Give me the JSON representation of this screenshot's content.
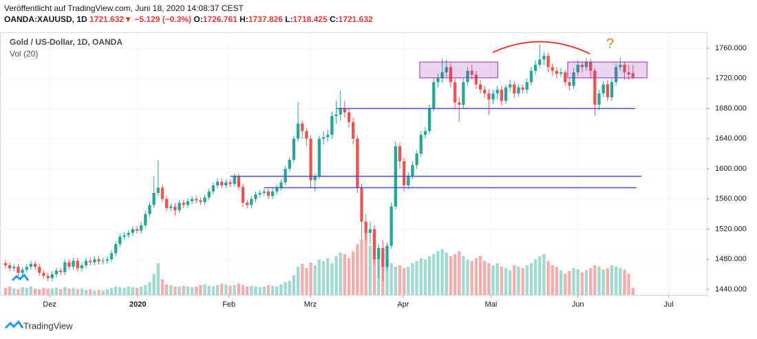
{
  "chart_data": {
    "type": "candlestick",
    "header": {
      "published": "Veröffentlicht auf TradingView.com, Juni 18, 2020 14:08:37 CEST",
      "symbol": "OANDA:XAUUSD, 1D",
      "last": "1721.632",
      "arrow": "▼",
      "change": "−5.129 (−0.3%)",
      "o_label": "O:",
      "o": "1726.761",
      "h_label": "H:",
      "h": "1737.826",
      "l_label": "L:",
      "l": "1718.425",
      "c_label": "C:",
      "c": "1721.632"
    },
    "title": "Gold  / US-Dollar, 1D, OANDA",
    "volume_label": "Vol (20)",
    "footer": "TradingView",
    "up_color": "#26a69a",
    "down_color": "#ef5350",
    "volume_up_color": "#9fd9d1",
    "volume_down_color": "#f7adab",
    "open": [
      1475,
      1472,
      1468,
      1470,
      1462,
      1466,
      1470,
      1474,
      1470,
      1462,
      1458,
      1455,
      1460,
      1465,
      1463,
      1476,
      1470,
      1478,
      1468,
      1472,
      1478,
      1476,
      1480,
      1477,
      1478,
      1480,
      1488,
      1500,
      1510,
      1512,
      1515,
      1520,
      1518,
      1525,
      1540,
      1552,
      1568,
      1575,
      1560,
      1548,
      1550,
      1545,
      1555,
      1552,
      1557,
      1560,
      1558,
      1556,
      1562,
      1570,
      1578,
      1583,
      1578,
      1582,
      1580,
      1590,
      1576,
      1555,
      1552,
      1560,
      1566,
      1568,
      1570,
      1564,
      1570,
      1575,
      1582,
      1600,
      1612,
      1640,
      1660,
      1650,
      1640,
      1585,
      1590,
      1640,
      1642,
      1645,
      1670,
      1672,
      1680,
      1675,
      1662,
      1640,
      1575,
      1530,
      1515,
      1520,
      1480,
      1495,
      1470,
      1498,
      1550,
      1630,
      1610,
      1578,
      1590,
      1605,
      1620,
      1645,
      1650,
      1680,
      1715,
      1720,
      1728,
      1735,
      1715,
      1688,
      1685,
      1715,
      1730,
      1725,
      1712,
      1705,
      1700,
      1692,
      1700,
      1705,
      1690,
      1708,
      1712,
      1700,
      1708,
      1705,
      1715,
      1730,
      1738,
      1745,
      1750,
      1735,
      1730,
      1726,
      1728,
      1715,
      1710,
      1728,
      1738,
      1735,
      1742,
      1730,
      1685,
      1700,
      1712,
      1695,
      1715,
      1735,
      1738,
      1728,
      1726.761
    ],
    "high": [
      1479,
      1476,
      1474,
      1474,
      1470,
      1474,
      1478,
      1478,
      1474,
      1466,
      1462,
      1464,
      1469,
      1469,
      1480,
      1480,
      1482,
      1482,
      1476,
      1482,
      1482,
      1484,
      1484,
      1482,
      1484,
      1492,
      1504,
      1514,
      1516,
      1519,
      1524,
      1524,
      1529,
      1544,
      1556,
      1590,
      1611,
      1579,
      1564,
      1554,
      1554,
      1559,
      1559,
      1561,
      1564,
      1564,
      1562,
      1566,
      1574,
      1582,
      1587,
      1587,
      1586,
      1586,
      1594,
      1594,
      1580,
      1559,
      1564,
      1570,
      1572,
      1574,
      1574,
      1574,
      1579,
      1586,
      1604,
      1616,
      1644,
      1689,
      1664,
      1654,
      1644,
      1594,
      1644,
      1650,
      1652,
      1676,
      1690,
      1704,
      1690,
      1680,
      1668,
      1645,
      1580,
      1540,
      1530,
      1525,
      1500,
      1505,
      1502,
      1555,
      1636,
      1635,
      1615,
      1595,
      1610,
      1624,
      1650,
      1655,
      1685,
      1720,
      1726,
      1746,
      1745,
      1740,
      1720,
      1695,
      1720,
      1735,
      1738,
      1730,
      1718,
      1710,
      1706,
      1705,
      1710,
      1710,
      1712,
      1718,
      1716,
      1712,
      1712,
      1720,
      1735,
      1744,
      1765,
      1755,
      1754,
      1740,
      1735,
      1734,
      1732,
      1720,
      1733,
      1744,
      1742,
      1747,
      1746,
      1734,
      1705,
      1716,
      1718,
      1720,
      1740,
      1748,
      1742,
      1738,
      1737.826
    ],
    "low": [
      1468,
      1464,
      1464,
      1458,
      1458,
      1462,
      1466,
      1466,
      1458,
      1454,
      1451,
      1451,
      1456,
      1459,
      1459,
      1466,
      1466,
      1464,
      1464,
      1468,
      1472,
      1472,
      1473,
      1473,
      1474,
      1476,
      1484,
      1496,
      1506,
      1508,
      1511,
      1514,
      1514,
      1521,
      1536,
      1548,
      1564,
      1556,
      1544,
      1544,
      1538,
      1541,
      1548,
      1548,
      1553,
      1554,
      1552,
      1552,
      1558,
      1566,
      1574,
      1574,
      1574,
      1576,
      1576,
      1572,
      1549,
      1548,
      1548,
      1556,
      1562,
      1564,
      1560,
      1560,
      1566,
      1571,
      1578,
      1596,
      1608,
      1636,
      1640,
      1630,
      1575,
      1570,
      1586,
      1632,
      1636,
      1640,
      1660,
      1664,
      1668,
      1655,
      1632,
      1568,
      1505,
      1505,
      1500,
      1472,
      1455,
      1451,
      1465,
      1494,
      1546,
      1600,
      1570,
      1573,
      1586,
      1600,
      1616,
      1640,
      1646,
      1676,
      1708,
      1714,
      1722,
      1708,
      1680,
      1662,
      1680,
      1710,
      1718,
      1706,
      1700,
      1694,
      1672,
      1686,
      1692,
      1684,
      1686,
      1702,
      1694,
      1696,
      1700,
      1700,
      1710,
      1725,
      1734,
      1738,
      1728,
      1724,
      1720,
      1722,
      1710,
      1704,
      1706,
      1724,
      1728,
      1730,
      1720,
      1670,
      1678,
      1695,
      1690,
      1690,
      1710,
      1730,
      1718,
      1718,
      1718.425
    ],
    "close": [
      1472,
      1468,
      1470,
      1462,
      1466,
      1470,
      1474,
      1470,
      1462,
      1458,
      1455,
      1460,
      1465,
      1463,
      1476,
      1470,
      1478,
      1468,
      1472,
      1478,
      1476,
      1480,
      1477,
      1478,
      1480,
      1488,
      1500,
      1510,
      1512,
      1515,
      1520,
      1518,
      1525,
      1540,
      1552,
      1568,
      1575,
      1560,
      1548,
      1550,
      1545,
      1555,
      1552,
      1557,
      1560,
      1558,
      1556,
      1562,
      1570,
      1578,
      1583,
      1578,
      1582,
      1580,
      1590,
      1576,
      1555,
      1552,
      1560,
      1566,
      1568,
      1570,
      1564,
      1570,
      1575,
      1582,
      1600,
      1612,
      1640,
      1660,
      1650,
      1640,
      1585,
      1590,
      1640,
      1642,
      1645,
      1670,
      1672,
      1680,
      1675,
      1662,
      1640,
      1575,
      1530,
      1515,
      1520,
      1480,
      1495,
      1470,
      1498,
      1550,
      1630,
      1610,
      1578,
      1590,
      1605,
      1620,
      1645,
      1650,
      1680,
      1715,
      1720,
      1728,
      1735,
      1715,
      1688,
      1685,
      1715,
      1730,
      1725,
      1712,
      1705,
      1700,
      1692,
      1700,
      1705,
      1690,
      1708,
      1712,
      1700,
      1708,
      1705,
      1715,
      1730,
      1738,
      1745,
      1750,
      1735,
      1730,
      1726,
      1728,
      1715,
      1710,
      1728,
      1738,
      1735,
      1742,
      1730,
      1685,
      1700,
      1712,
      1695,
      1715,
      1735,
      1738,
      1728,
      1725,
      1721.632
    ],
    "volume": [
      10,
      12,
      9,
      8,
      11,
      10,
      12,
      9,
      8,
      10,
      9,
      9,
      10,
      8,
      11,
      9,
      10,
      8,
      9,
      7,
      8,
      6,
      7,
      6,
      8,
      10,
      12,
      11,
      10,
      12,
      11,
      10,
      12,
      14,
      18,
      30,
      45,
      22,
      15,
      14,
      12,
      12,
      13,
      12,
      11,
      12,
      14,
      15,
      13,
      12,
      14,
      16,
      15,
      13,
      14,
      16,
      14,
      12,
      13,
      12,
      11,
      12,
      14,
      13,
      12,
      15,
      18,
      20,
      28,
      40,
      44,
      38,
      46,
      42,
      50,
      48,
      52,
      45,
      55,
      60,
      58,
      52,
      62,
      72,
      78,
      88,
      70,
      65,
      60,
      55,
      50,
      45,
      40,
      42,
      38,
      40,
      45,
      48,
      52,
      50,
      55,
      58,
      62,
      65,
      60,
      55,
      58,
      62,
      55,
      50,
      48,
      52,
      55,
      48,
      45,
      42,
      45,
      40,
      38,
      35,
      42,
      40,
      38,
      42,
      45,
      50,
      55,
      58,
      48,
      42,
      40,
      35,
      30,
      34,
      38,
      36,
      32,
      35,
      38,
      42,
      40,
      36,
      38,
      42,
      40,
      38,
      36,
      30,
      10
    ],
    "xlim": [
      -1.3,
      165.4
    ],
    "xticks": [
      {
        "value": 10.4,
        "label": "Dez"
      },
      {
        "value": 31.2,
        "label": "2020"
      },
      {
        "value": 52.7,
        "label": "Feb"
      },
      {
        "value": 71.9,
        "label": "Mrz"
      },
      {
        "value": 93.8,
        "label": "Apr"
      },
      {
        "value": 114.5,
        "label": "Mai"
      },
      {
        "value": 135,
        "label": "Jun"
      },
      {
        "value": 156.4,
        "label": "Jul"
      }
    ],
    "ylim": [
      1432.7,
      1781
    ],
    "yticks": [
      {
        "value": 1440,
        "label": "1440.000"
      },
      {
        "value": 1480,
        "label": "1480.000"
      },
      {
        "value": 1520,
        "label": "1520.000"
      },
      {
        "value": 1560,
        "label": "1560.000"
      },
      {
        "value": 1600,
        "label": "1600.000"
      },
      {
        "value": 1640,
        "label": "1640.000"
      },
      {
        "value": 1680,
        "label": "1680.000"
      },
      {
        "value": 1720,
        "label": "1720.000"
      },
      {
        "value": 1760,
        "label": "1760.000"
      }
    ],
    "grid": true,
    "levels": [
      {
        "value": 1680,
        "from": 78,
        "to": 148.5,
        "color": "#4a4ad6"
      },
      {
        "value": 1590,
        "from": 53,
        "to": 150,
        "color": "#4a4ad6"
      },
      {
        "value": 1575,
        "from": 61,
        "to": 148.8,
        "color": "#4a4ad6"
      }
    ],
    "zones": [
      {
        "from": 97.7,
        "to": 116.1,
        "low": 1720.7,
        "high": 1741.7,
        "color": "#9c27b0"
      },
      {
        "from": 132.6,
        "to": 151.3,
        "low": 1720.7,
        "high": 1741.7,
        "color": "#9c27b0"
      }
    ],
    "note": "?"
  }
}
